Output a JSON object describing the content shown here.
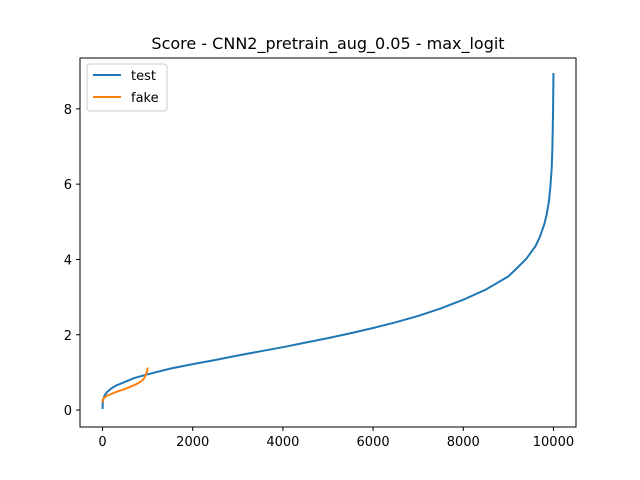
{
  "chart_data": {
    "type": "line",
    "title": "Score - CNN2_pretrain_aug_0.05 - max_logit",
    "xlabel": "",
    "ylabel": "",
    "xlim": [
      -500,
      10500
    ],
    "ylim": [
      -0.45,
      9.35
    ],
    "xticks": [
      0,
      2000,
      4000,
      6000,
      8000,
      10000
    ],
    "yticks": [
      0,
      2,
      4,
      6,
      8
    ],
    "grid": false,
    "legend_position": "top-left",
    "series": [
      {
        "name": "test",
        "color": "#1f77b4",
        "x": [
          0,
          5,
          20,
          50,
          100,
          200,
          300,
          500,
          700,
          1000,
          1500,
          2000,
          2500,
          3000,
          3500,
          4000,
          4500,
          5000,
          5500,
          6000,
          6500,
          7000,
          7500,
          8000,
          8500,
          9000,
          9200,
          9400,
          9600,
          9700,
          9800,
          9850,
          9900,
          9930,
          9960,
          9975,
          9985,
          9992,
          9996,
          10000
        ],
        "y": [
          0.03,
          0.2,
          0.3,
          0.4,
          0.48,
          0.58,
          0.65,
          0.75,
          0.85,
          0.95,
          1.1,
          1.22,
          1.33,
          1.45,
          1.56,
          1.67,
          1.79,
          1.91,
          2.04,
          2.18,
          2.33,
          2.5,
          2.7,
          2.93,
          3.2,
          3.55,
          3.78,
          4.02,
          4.35,
          4.6,
          4.95,
          5.2,
          5.55,
          5.9,
          6.4,
          6.9,
          7.5,
          8.0,
          8.5,
          8.95
        ]
      },
      {
        "name": "fake",
        "color": "#ff7f0e",
        "x": [
          0,
          5,
          20,
          50,
          100,
          200,
          300,
          400,
          500,
          600,
          700,
          800,
          850,
          900,
          930,
          950,
          970,
          990,
          1000
        ],
        "y": [
          0.2,
          0.27,
          0.3,
          0.34,
          0.38,
          0.43,
          0.48,
          0.52,
          0.56,
          0.61,
          0.66,
          0.72,
          0.76,
          0.81,
          0.86,
          0.91,
          0.97,
          1.05,
          1.13
        ]
      }
    ]
  }
}
